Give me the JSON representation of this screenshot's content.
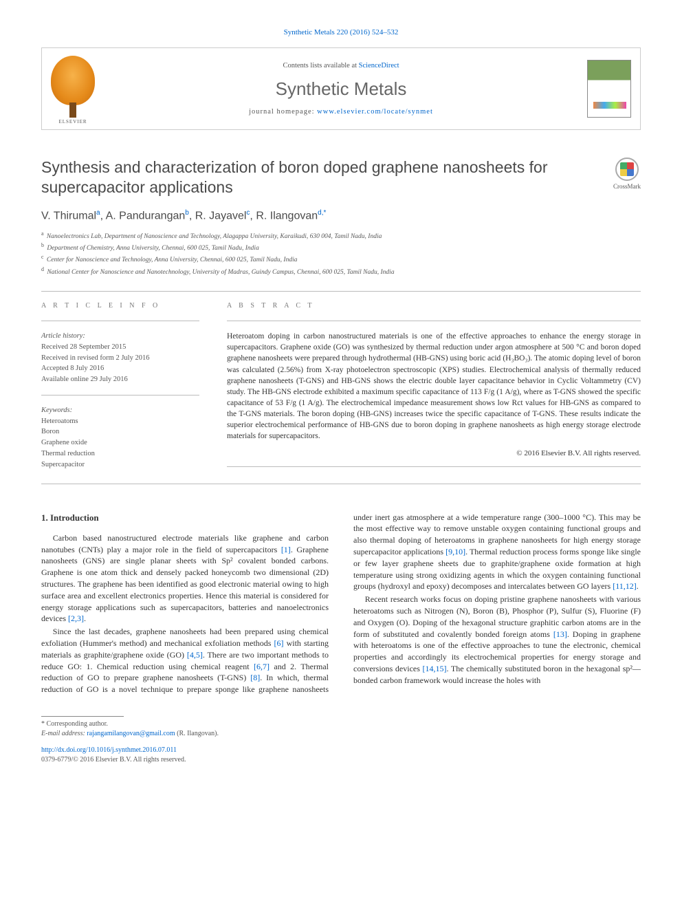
{
  "citation": "Synthetic Metals 220 (2016) 524–532",
  "masthead": {
    "contents_prefix": "Contents lists available at ",
    "contents_link": "ScienceDirect",
    "journal": "Synthetic Metals",
    "homepage_prefix": "journal homepage: ",
    "homepage_link": "www.elsevier.com/locate/synmet",
    "publisher_label": "ELSEVIER"
  },
  "crossmark_label": "CrossMark",
  "title": "Synthesis and characterization of boron doped graphene nanosheets for supercapacitor applications",
  "authors_html": "V. Thirumal<sup>a</sup>, A. Pandurangan<sup>b</sup>, R. Jayavel<sup>c</sup>, R. Ilangovan<sup>d,*</sup>",
  "affiliations": [
    {
      "key": "a",
      "text": "Nanoelectronics Lab, Department of Nanoscience and Technology, Alagappa University, Karaikudi, 630 004, Tamil Nadu, India"
    },
    {
      "key": "b",
      "text": "Department of Chemistry, Anna University, Chennai, 600 025, Tamil Nadu, India"
    },
    {
      "key": "c",
      "text": "Center for Nanoscience and Technology, Anna University, Chennai, 600 025, Tamil Nadu, India"
    },
    {
      "key": "d",
      "text": "National Center for Nanoscience and Nanotechnology, University of Madras, Guindy Campus, Chennai, 600 025, Tamil Nadu, India"
    }
  ],
  "article_info": {
    "heading": "A R T I C L E   I N F O",
    "history_label": "Article history:",
    "history": [
      "Received 28 September 2015",
      "Received in revised form 2 July 2016",
      "Accepted 8 July 2016",
      "Available online 29 July 2016"
    ],
    "keywords_label": "Keywords:",
    "keywords": [
      "Heteroatoms",
      "Boron",
      "Graphene oxide",
      "Thermal reduction",
      "Supercapacitor"
    ]
  },
  "abstract": {
    "heading": "A B S T R A C T",
    "text": "Heteroatom doping in carbon nanostructured materials is one of the effective approaches to enhance the energy storage in supercapacitors. Graphene oxide (GO) was synthesized by thermal reduction under argon atmosphere at 500 °C and boron doped graphene nanosheets were prepared through hydrothermal (HB-GNS) using boric acid (H₃BO₃). The atomic doping level of boron was calculated (2.56%) from X-ray photoelectron spectroscopic (XPS) studies. Electrochemical analysis of thermally reduced graphene nanosheets (T-GNS) and HB-GNS shows the electric double layer capacitance behavior in Cyclic Voltammetry (CV) study. The HB-GNS electrode exhibited a maximum specific capacitance of 113 F/g (1 A/g), where as T-GNS showed the specific capacitance of 53 F/g (1 A/g). The electrochemical impedance measurement shows low Rct values for HB-GNS as compared to the T-GNS materials. The boron doping (HB-GNS) increases twice the specific capacitance of T-GNS. These results indicate the superior electrochemical performance of HB-GNS due to boron doping in graphene nanosheets as high energy storage electrode materials for supercapacitors.",
    "copyright": "© 2016 Elsevier B.V. All rights reserved."
  },
  "intro": {
    "heading": "1. Introduction",
    "p1": "Carbon based nanostructured electrode materials like graphene and carbon nanotubes (CNTs) play a major role in the field of supercapacitors [1]. Graphene nanosheets (GNS) are single planar sheets with Sp² covalent bonded carbons. Graphene is one atom thick and densely packed honeycomb two dimensional (2D) structures. The graphene has been identified as good electronic material owing to high surface area and excellent electronics properties. Hence this material is considered for energy storage applications such as supercapacitors, batteries and nanoelectronics devices [2,3].",
    "p2": "Since the last decades, graphene nanosheets had been prepared using chemical exfoliation (Hummer's method) and mechanical exfoliation methods [6] with starting materials as graphite/graphene oxide (GO) [4,5]. There are two important methods to reduce GO: 1. Chemical reduction using chemical reagent [6,7] and 2. Thermal reduction of GO to prepare graphene nanosheets (T-GNS) [8]. In which, thermal reduction of GO is a novel technique to prepare sponge like graphene nanosheets under inert gas atmosphere at a wide temperature range (300–1000 °C). This may be the most effective way to remove unstable oxygen containing functional groups and also thermal doping of heteroatoms in graphene nanosheets for high energy storage supercapacitor applications [9,10]. Thermal reduction process forms sponge like single or few layer graphene sheets due to graphite/graphene oxide formation at high temperature using strong oxidizing agents in which the oxygen containing functional groups (hydroxyl and epoxy) decomposes and intercalates between GO layers [11,12].",
    "p3": "Recent research works focus on doping pristine graphene nanosheets with various heteroatoms such as Nitrogen (N), Boron (B), Phosphor (P), Sulfur (S), Fluorine (F) and Oxygen (O). Doping of the hexagonal structure graphitic carbon atoms are in the form of substituted and covalently bonded foreign atoms [13]. Doping in graphene with heteroatoms is one of the effective approaches to tune the electronic, chemical properties and accordingly its electrochemical properties for energy storage and conversions devices [14,15]. The chemically substituted boron in the hexagonal sp²—bonded carbon framework would increase the holes with"
  },
  "footer": {
    "corresponding_label": "* Corresponding author.",
    "email_label": "E-mail address:",
    "email": "rajangamilangovan@gmail.com",
    "email_name": "(R. Ilangovan).",
    "doi": "http://dx.doi.org/10.1016/j.synthmet.2016.07.011",
    "issn_line": "0379-6779/© 2016 Elsevier B.V. All rights reserved."
  },
  "refs": {
    "r1": "[1]",
    "r23": "[2,3]",
    "r6": "[6]",
    "r45": "[4,5]",
    "r67": "[6,7]",
    "r8": "[8]",
    "r910": "[9,10]",
    "r1112": "[11,12]",
    "r13": "[13]",
    "r1415": "[14,15]"
  },
  "colors": {
    "link": "#0066cc",
    "heading_gray": "#4a4a4a",
    "rule": "#bbbbbb",
    "text": "#333333"
  }
}
